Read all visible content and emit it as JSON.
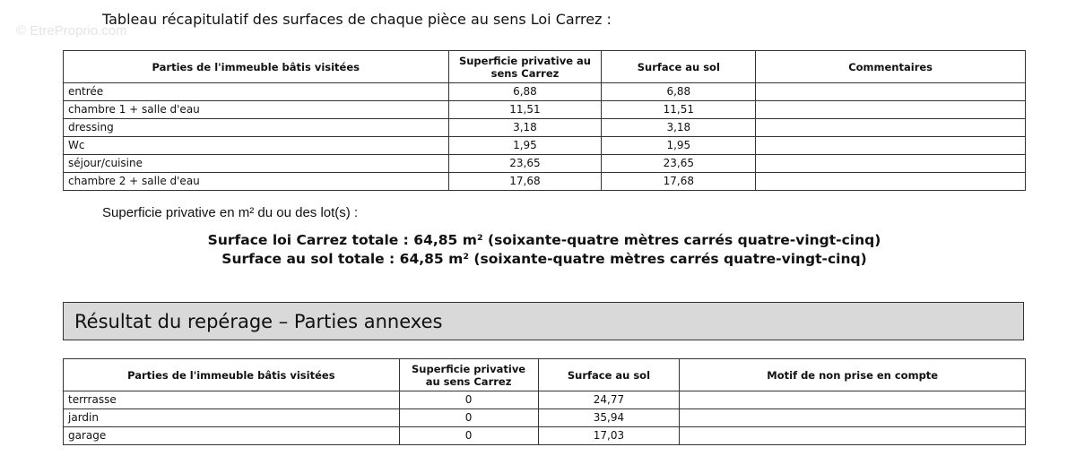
{
  "watermark": "© EtreProprio.com",
  "intro": "Tableau récapitulatif des surfaces de chaque pièce au sens Loi Carrez :",
  "table1": {
    "headers": [
      "Parties de l'immeuble bâtis visitées",
      "Superficie privative au sens Carrez",
      "Surface au sol",
      "Commentaires"
    ],
    "rows": [
      {
        "piece": "entrée",
        "carrez": "6,88",
        "sol": "6,88",
        "comment": ""
      },
      {
        "piece": "chambre 1 + salle d'eau",
        "carrez": "11,51",
        "sol": "11,51",
        "comment": ""
      },
      {
        "piece": "dressing",
        "carrez": "3,18",
        "sol": "3,18",
        "comment": ""
      },
      {
        "piece": "Wc",
        "carrez": "1,95",
        "sol": "1,95",
        "comment": ""
      },
      {
        "piece": "séjour/cuisine",
        "carrez": "23,65",
        "sol": "23,65",
        "comment": ""
      },
      {
        "piece": "chambre 2 + salle d'eau",
        "carrez": "17,68",
        "sol": "17,68",
        "comment": ""
      }
    ]
  },
  "superficie_label": "Superficie privative en m² du ou des lot(s) :",
  "total_carrez": "Surface loi Carrez totale : 64,85 m² (soixante-quatre mètres carrés quatre-vingt-cinq)",
  "total_sol": "Surface au sol totale : 64,85 m² (soixante-quatre mètres carrés quatre-vingt-cinq)",
  "section_title": "Résultat du repérage – Parties annexes",
  "table2": {
    "headers": [
      "Parties de l'immeuble bâtis visitées",
      "Superficie privative au sens Carrez",
      "Surface au sol",
      "Motif de non prise en compte"
    ],
    "rows": [
      {
        "piece": "terrrasse",
        "carrez": "0",
        "sol": "24,77",
        "motif": ""
      },
      {
        "piece": "jardin",
        "carrez": "0",
        "sol": "35,94",
        "motif": ""
      },
      {
        "piece": "garage",
        "carrez": "0",
        "sol": "17,03",
        "motif": ""
      }
    ]
  }
}
